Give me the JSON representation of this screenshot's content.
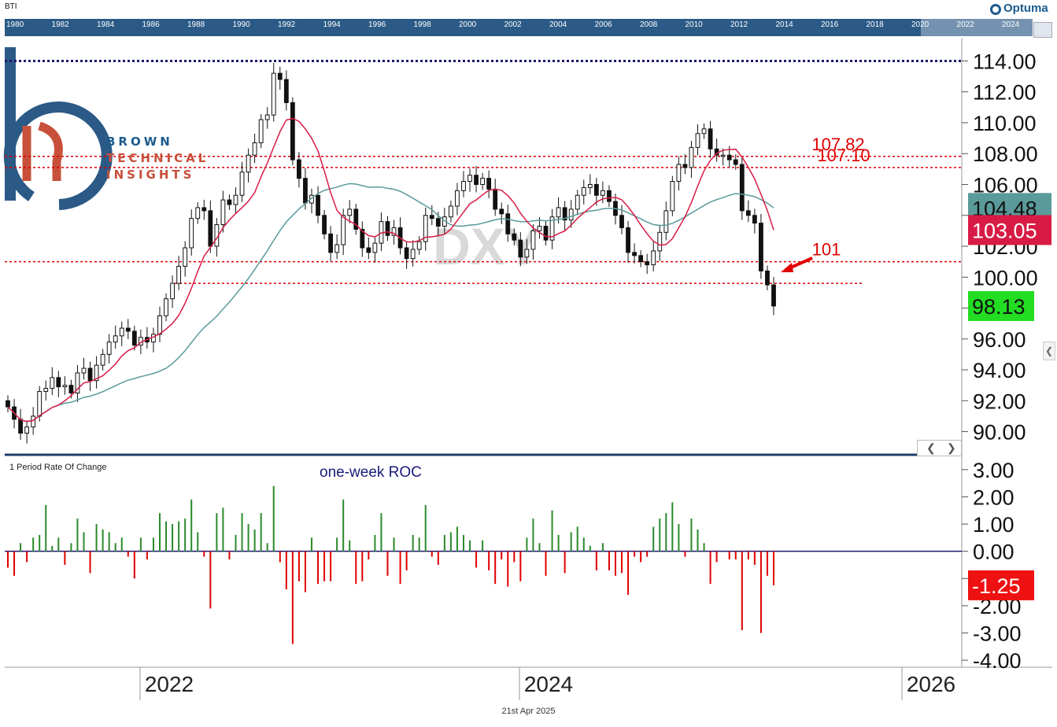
{
  "symbol": "BTI",
  "brand": "Optuma",
  "footer_date": "21st Apr 2025",
  "logo": {
    "line1": "BROWN",
    "line2": "TECHNICAL",
    "line3": "INSIGHTS"
  },
  "navigator": {
    "years": [
      "1980",
      "1982",
      "1984",
      "1986",
      "1988",
      "1990",
      "1992",
      "1994",
      "1996",
      "1998",
      "2000",
      "2002",
      "2004",
      "2006",
      "2008",
      "2010",
      "2012",
      "2014",
      "2016",
      "2018",
      "2020",
      "2022",
      "2024"
    ]
  },
  "colors": {
    "up": "#2a8a2a",
    "down": "#e00000",
    "ma_fast": "#d81b45",
    "ma_slow": "#5a9a9a",
    "level": "#e00000",
    "high_line": "#1a1a6e",
    "watermark": "#d9d9d9"
  },
  "chart_data": [
    {
      "type": "candlestick",
      "watermark": "DXY",
      "ylim": [
        88.5,
        115.5
      ],
      "y_ticks": [
        "114.00",
        "112.00",
        "110.00",
        "108.00",
        "106.00",
        "104.00",
        "102.00",
        "100.00",
        "98.00",
        "96.00",
        "94.00",
        "92.00",
        "90.00"
      ],
      "x_ticks": [
        "2022",
        "2024",
        "2026"
      ],
      "close": [
        91.6,
        90.8,
        89.9,
        90.3,
        91.0,
        92.6,
        92.8,
        93.5,
        92.9,
        93.0,
        92.5,
        93.8,
        94.1,
        93.3,
        94.3,
        95.0,
        95.8,
        96.2,
        96.7,
        96.5,
        95.6,
        96.1,
        95.8,
        96.3,
        97.5,
        98.6,
        99.6,
        100.7,
        101.9,
        103.8,
        104.5,
        104.3,
        102.0,
        103.4,
        105.0,
        104.7,
        105.3,
        106.8,
        107.9,
        108.7,
        110.2,
        110.5,
        113.2,
        112.8,
        111.3,
        107.6,
        106.4,
        104.8,
        105.3,
        104.0,
        102.8,
        101.6,
        102.1,
        104.0,
        104.4,
        103.1,
        101.9,
        101.6,
        102.2,
        103.6,
        102.7,
        103.2,
        101.9,
        101.2,
        101.8,
        102.3,
        104.0,
        103.8,
        103.3,
        103.9,
        104.6,
        105.6,
        106.2,
        106.6,
        106.0,
        106.4,
        105.7,
        104.4,
        104.1,
        102.8,
        102.4,
        101.3,
        101.8,
        103.0,
        103.3,
        102.4,
        103.9,
        104.5,
        103.7,
        104.4,
        105.3,
        105.8,
        106.0,
        105.3,
        105.6,
        104.9,
        104.0,
        103.2,
        101.6,
        101.4,
        101.0,
        100.8,
        101.7,
        102.9,
        104.3,
        106.2,
        107.3,
        107.1,
        108.4,
        109.3,
        109.6,
        108.3,
        107.9,
        107.9,
        107.6,
        107.3,
        104.3,
        104.0,
        103.5,
        100.4,
        99.5,
        98.13
      ],
      "ma_fast_last": 103.05,
      "ma_slow_last": 104.48,
      "last_close": 98.13,
      "last_close_label": "98.13",
      "ma_fast_label": "103.05",
      "ma_slow_label": "104.48",
      "levels": [
        {
          "value": 114.0,
          "label": "",
          "style": "dotted-navy"
        },
        {
          "value": 107.82,
          "label": "107.82"
        },
        {
          "value": 107.1,
          "label": "107.10"
        },
        {
          "value": 101.0,
          "label": "101"
        },
        {
          "value": 99.6,
          "label": ""
        }
      ]
    },
    {
      "type": "bar",
      "title": "1 Period Rate Of Change",
      "annotation": "one-week ROC",
      "ylim": [
        -4.2,
        3.4
      ],
      "y_ticks": [
        "3.00",
        "2.00",
        "1.00",
        "0.00",
        "-1.00",
        "-2.00",
        "-3.00",
        "-4.00"
      ],
      "last_value": -1.25,
      "last_value_label": "-1.25",
      "values": [
        -0.6,
        -0.9,
        0.3,
        -0.4,
        0.5,
        0.6,
        1.7,
        0.2,
        0.5,
        -0.5,
        0.3,
        1.2,
        0.7,
        -0.8,
        1.0,
        0.8,
        0.7,
        0.3,
        0.5,
        -0.2,
        -1.0,
        0.5,
        -0.3,
        0.5,
        1.4,
        1.1,
        1.0,
        1.1,
        1.2,
        1.9,
        0.7,
        -0.2,
        -2.1,
        1.4,
        1.6,
        -0.3,
        0.6,
        1.4,
        1.0,
        0.8,
        1.4,
        0.3,
        2.4,
        -0.4,
        -1.4,
        -3.4,
        -1.1,
        -1.5,
        0.5,
        -1.2,
        -1.1,
        -1.1,
        0.5,
        1.9,
        0.4,
        -1.2,
        -1.1,
        -0.3,
        0.6,
        1.4,
        -0.9,
        0.5,
        -1.2,
        -0.7,
        0.6,
        0.5,
        1.7,
        -0.2,
        -0.5,
        0.6,
        0.7,
        0.9,
        0.6,
        0.4,
        -0.6,
        0.4,
        -0.7,
        -1.2,
        -0.3,
        -1.3,
        -0.4,
        -1.1,
        0.5,
        1.2,
        0.3,
        -0.9,
        1.5,
        0.6,
        -0.8,
        0.7,
        0.9,
        0.5,
        0.2,
        -0.7,
        0.3,
        -0.7,
        -0.9,
        -0.8,
        -1.6,
        -0.2,
        -0.4,
        -0.2,
        0.9,
        1.2,
        1.4,
        1.8,
        1.0,
        -0.2,
        1.2,
        0.8,
        0.3,
        -1.2,
        -0.4,
        0.0,
        -0.3,
        -0.3,
        -2.9,
        -0.3,
        -0.5,
        -3.0,
        -0.9,
        -1.25
      ]
    }
  ]
}
